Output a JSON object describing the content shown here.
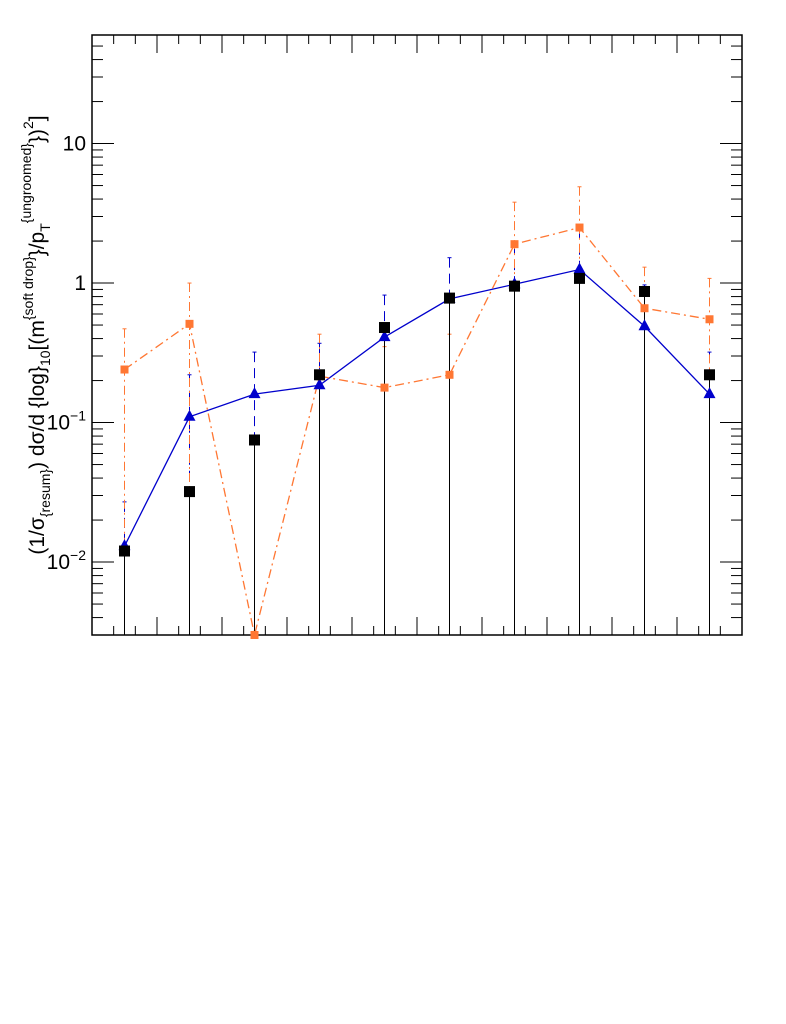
{
  "chart_data": {
    "type": "scatter",
    "title": "",
    "xlabel": "",
    "ylabel": {
      "part1": "(1/σ",
      "sub1": "{resum}",
      "part2": ") dσ/d {log}",
      "sub2": "10",
      "part3": "[(m",
      "sup3": "{soft drop}",
      "part4": "}/p",
      "sub4": "T",
      "sup4": "{ungroomed}",
      "part5": "})",
      "sup5": "2",
      "part6": "]"
    },
    "y_scale": "log",
    "ylim": [
      0.003,
      60
    ],
    "x_index_range": [
      0,
      10
    ],
    "y_ticks": [
      {
        "value": 0.01,
        "base": "10",
        "exp": "−2"
      },
      {
        "value": 0.1,
        "base": "10",
        "exp": "−1"
      },
      {
        "value": 1,
        "label": "1"
      },
      {
        "value": 10,
        "label": "10"
      }
    ],
    "x_tick_labels_shown": false,
    "grid": false,
    "legend": "none",
    "x": [
      0.5,
      1.5,
      2.5,
      3.5,
      4.5,
      5.5,
      6.5,
      7.5,
      8.5,
      9.5
    ],
    "series": [
      {
        "marker": "triangle",
        "line": "solid",
        "color": "#0000cc",
        "values": [
          0.013,
          0.11,
          0.16,
          0.185,
          0.41,
          0.77,
          0.98,
          1.25,
          0.49,
          0.16
        ],
        "err_up": [
          0.027,
          0.22,
          0.32,
          0.37,
          0.82,
          1.52,
          1.9,
          2.45,
          0.97,
          0.32
        ]
      },
      {
        "marker": "square",
        "line": "dash-dot",
        "color": "#ff7733",
        "values": [
          0.24,
          0.51,
          0.003,
          0.215,
          0.178,
          0.22,
          1.9,
          2.5,
          0.66,
          0.55
        ],
        "err_up": [
          0.47,
          1.0,
          0.003,
          0.43,
          0.35,
          0.43,
          3.8,
          4.9,
          1.3,
          1.08
        ]
      },
      {
        "marker": "square-filled",
        "line": "none",
        "color": "#000000",
        "values": [
          0.012,
          0.032,
          0.075,
          0.22,
          0.48,
          0.78,
          0.95,
          1.08,
          0.87,
          0.22
        ],
        "err_up": [
          0.012,
          0.032,
          0.075,
          0.22,
          0.48,
          0.78,
          0.95,
          1.08,
          0.87,
          0.22
        ]
      }
    ]
  }
}
